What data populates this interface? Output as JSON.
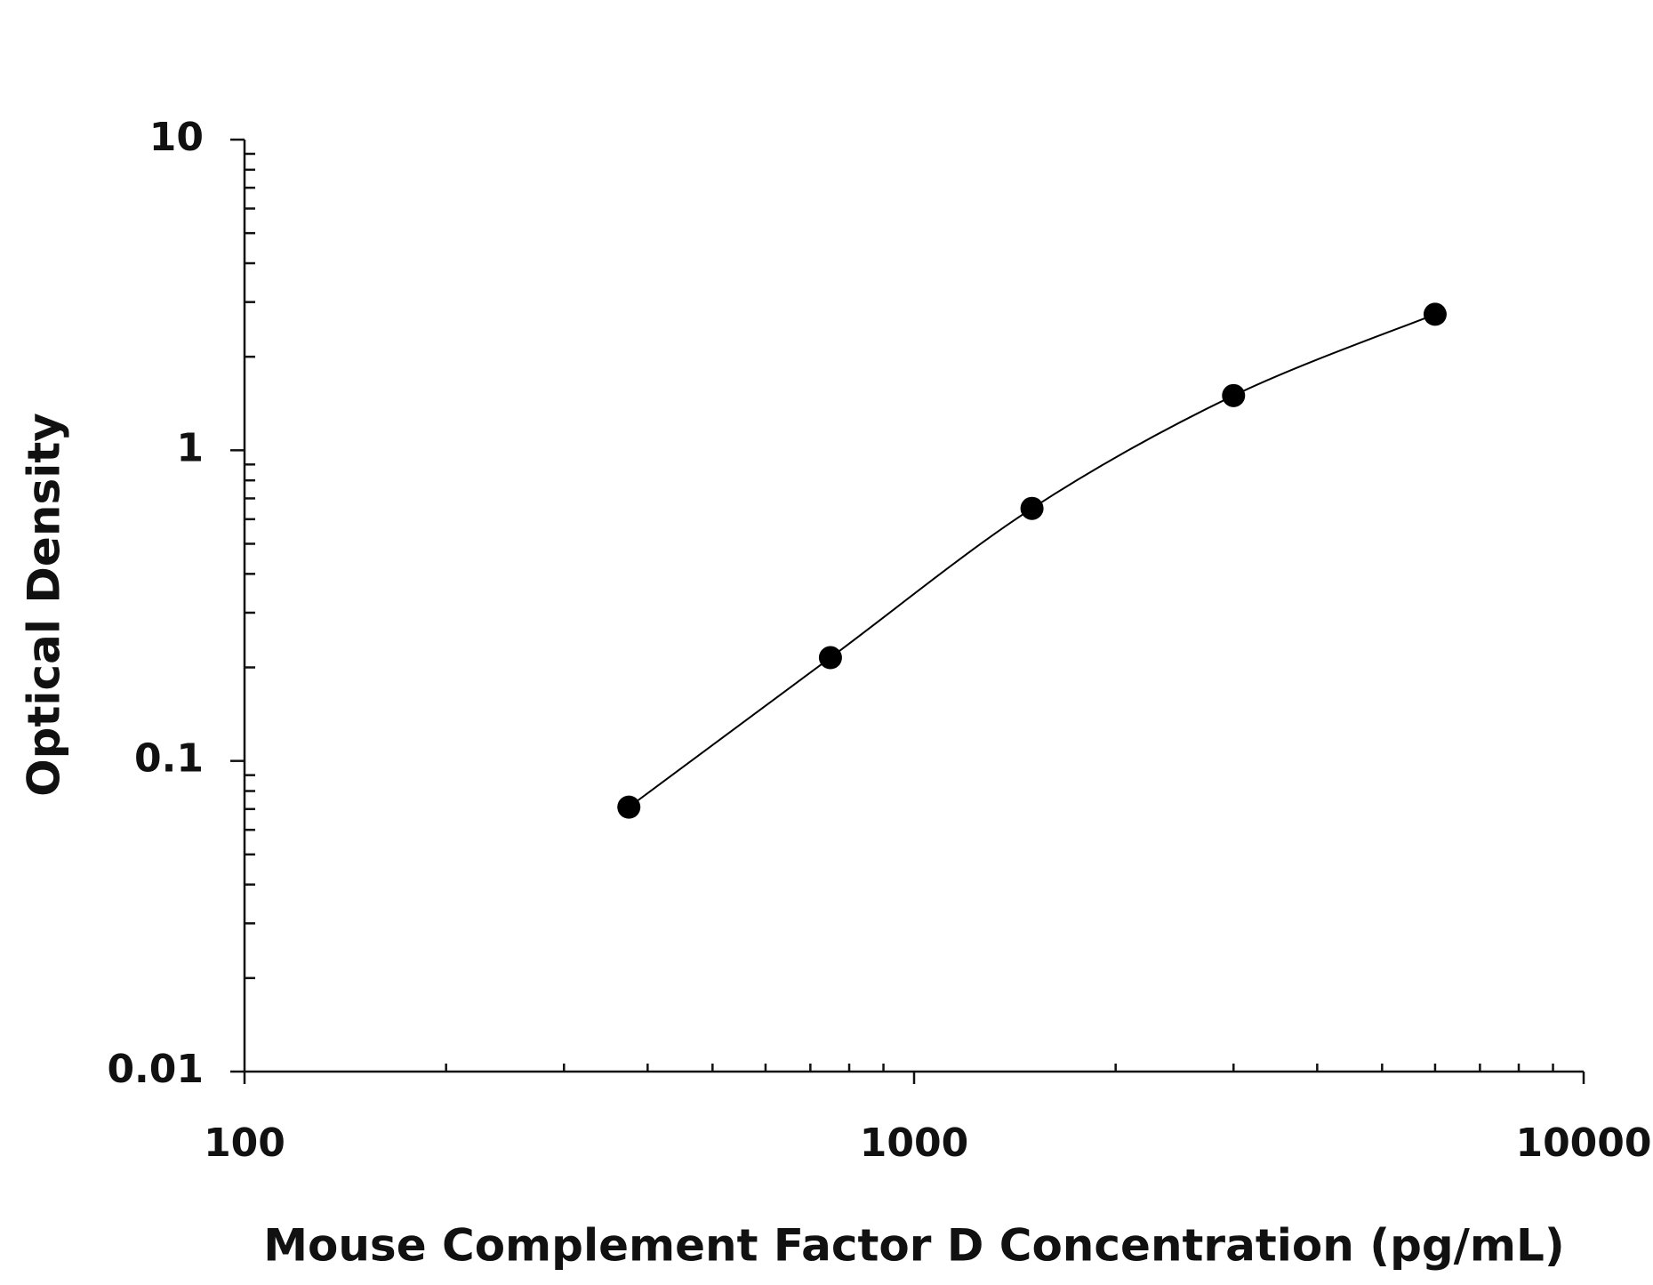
{
  "chart_data": {
    "type": "scatter",
    "x_label": "Mouse Complement Factor D Concentration (pg/mL)",
    "y_label": "Optical Density",
    "x_scale": "log",
    "y_scale": "log",
    "xlim": [
      100,
      10000
    ],
    "ylim": [
      0.01,
      10
    ],
    "xticks": [
      100,
      1000,
      10000
    ],
    "yticks": [
      0.01,
      0.1,
      1,
      10
    ],
    "xminorticks": [
      200,
      300,
      400,
      500,
      600,
      700,
      800,
      900,
      2000,
      3000,
      4000,
      5000,
      6000,
      7000,
      8000,
      9000
    ],
    "yminorticks": [
      0.02,
      0.03,
      0.04,
      0.05,
      0.06,
      0.07,
      0.08,
      0.09,
      0.2,
      0.3,
      0.4,
      0.5,
      0.6,
      0.7,
      0.8,
      0.9,
      2,
      3,
      4,
      5,
      6,
      7,
      8,
      9
    ],
    "fit_line": true,
    "series": [
      {
        "color": "#000000",
        "x": [
          375,
          750,
          1500,
          3000,
          6000
        ],
        "values": [
          0.071,
          0.215,
          0.65,
          1.5,
          2.74
        ]
      }
    ]
  }
}
